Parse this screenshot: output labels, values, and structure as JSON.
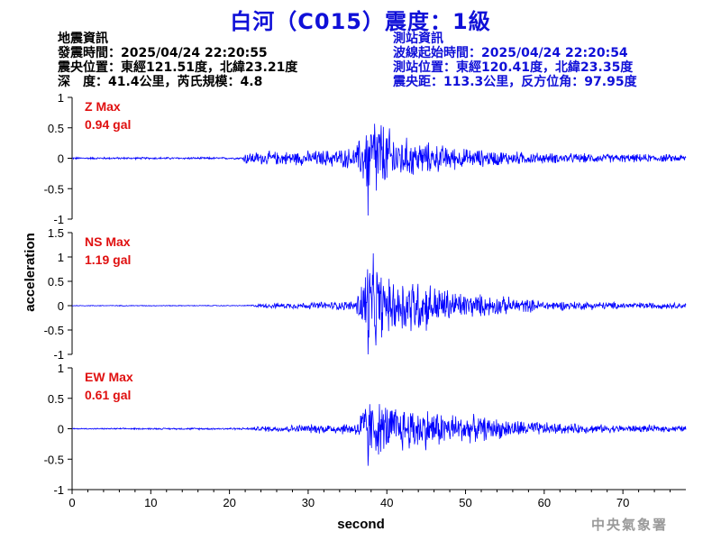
{
  "title": "白河（C015）震度：1級",
  "earthquake_info": {
    "heading": "地震資訊",
    "origin_time": "發震時間：2025/04/24 22:20:55",
    "epicenter": "震央位置：東經121.51度，北緯23.21度",
    "depth_magnitude": "深　度：41.4公里，芮氏規模：4.8"
  },
  "station_info": {
    "heading": "測站資訊",
    "wave_start": "波線起始時間：2025/04/24 22:20:54",
    "station_location": "測站位置：東經120.41度，北緯23.35度",
    "distance_azimuth": "震央距：113.3公里，反方位角：97.95度"
  },
  "agency": "中央氣象署",
  "colors": {
    "title": "#1010d8",
    "waveform": "#0000ff",
    "max_label": "#e01010",
    "station_text": "#1010d8"
  },
  "chart_data": {
    "type": "line",
    "xlabel": "second",
    "ylabel": "acceleration",
    "xlim": [
      0,
      78
    ],
    "xticks": [
      0,
      10,
      20,
      30,
      40,
      50,
      60,
      70
    ],
    "panels": [
      {
        "name": "Z",
        "label": "Z Max",
        "max_value": "0.94 gal",
        "ylim": [
          -1,
          1
        ],
        "yticks": [
          -1,
          -0.5,
          0,
          0.5,
          1
        ],
        "peak": 0.94,
        "envelope": [
          [
            0,
            0.02
          ],
          [
            21.5,
            0.02
          ],
          [
            22,
            0.12
          ],
          [
            30,
            0.14
          ],
          [
            36,
            0.2
          ],
          [
            37.5,
            0.7
          ],
          [
            38.5,
            0.94
          ],
          [
            40,
            0.6
          ],
          [
            42,
            0.4
          ],
          [
            45,
            0.3
          ],
          [
            50,
            0.18
          ],
          [
            60,
            0.1
          ],
          [
            70,
            0.08
          ],
          [
            78,
            0.07
          ]
        ]
      },
      {
        "name": "NS",
        "label": "NS Max",
        "max_value": "1.19 gal",
        "ylim": [
          -1,
          1.5
        ],
        "yticks": [
          -1,
          -0.5,
          0,
          0.5,
          1,
          1.5
        ],
        "peak": 1.19,
        "envelope": [
          [
            0,
            0.01
          ],
          [
            22,
            0.01
          ],
          [
            25,
            0.06
          ],
          [
            30,
            0.08
          ],
          [
            36,
            0.12
          ],
          [
            37.5,
            1.19
          ],
          [
            38.5,
            1.1
          ],
          [
            40,
            0.6
          ],
          [
            43,
            0.75
          ],
          [
            46,
            0.5
          ],
          [
            50,
            0.3
          ],
          [
            60,
            0.12
          ],
          [
            70,
            0.08
          ],
          [
            78,
            0.07
          ]
        ]
      },
      {
        "name": "EW",
        "label": "EW Max",
        "max_value": "0.61 gal",
        "ylim": [
          -1,
          1
        ],
        "yticks": [
          -1,
          -0.5,
          0,
          0.5,
          1
        ],
        "peak": 0.61,
        "envelope": [
          [
            0,
            0.01
          ],
          [
            22,
            0.02
          ],
          [
            25,
            0.06
          ],
          [
            30,
            0.08
          ],
          [
            36,
            0.12
          ],
          [
            37.5,
            0.61
          ],
          [
            39,
            0.5
          ],
          [
            41,
            0.45
          ],
          [
            44,
            0.42
          ],
          [
            48,
            0.3
          ],
          [
            55,
            0.18
          ],
          [
            62,
            0.1
          ],
          [
            70,
            0.07
          ],
          [
            78,
            0.06
          ]
        ]
      }
    ]
  }
}
